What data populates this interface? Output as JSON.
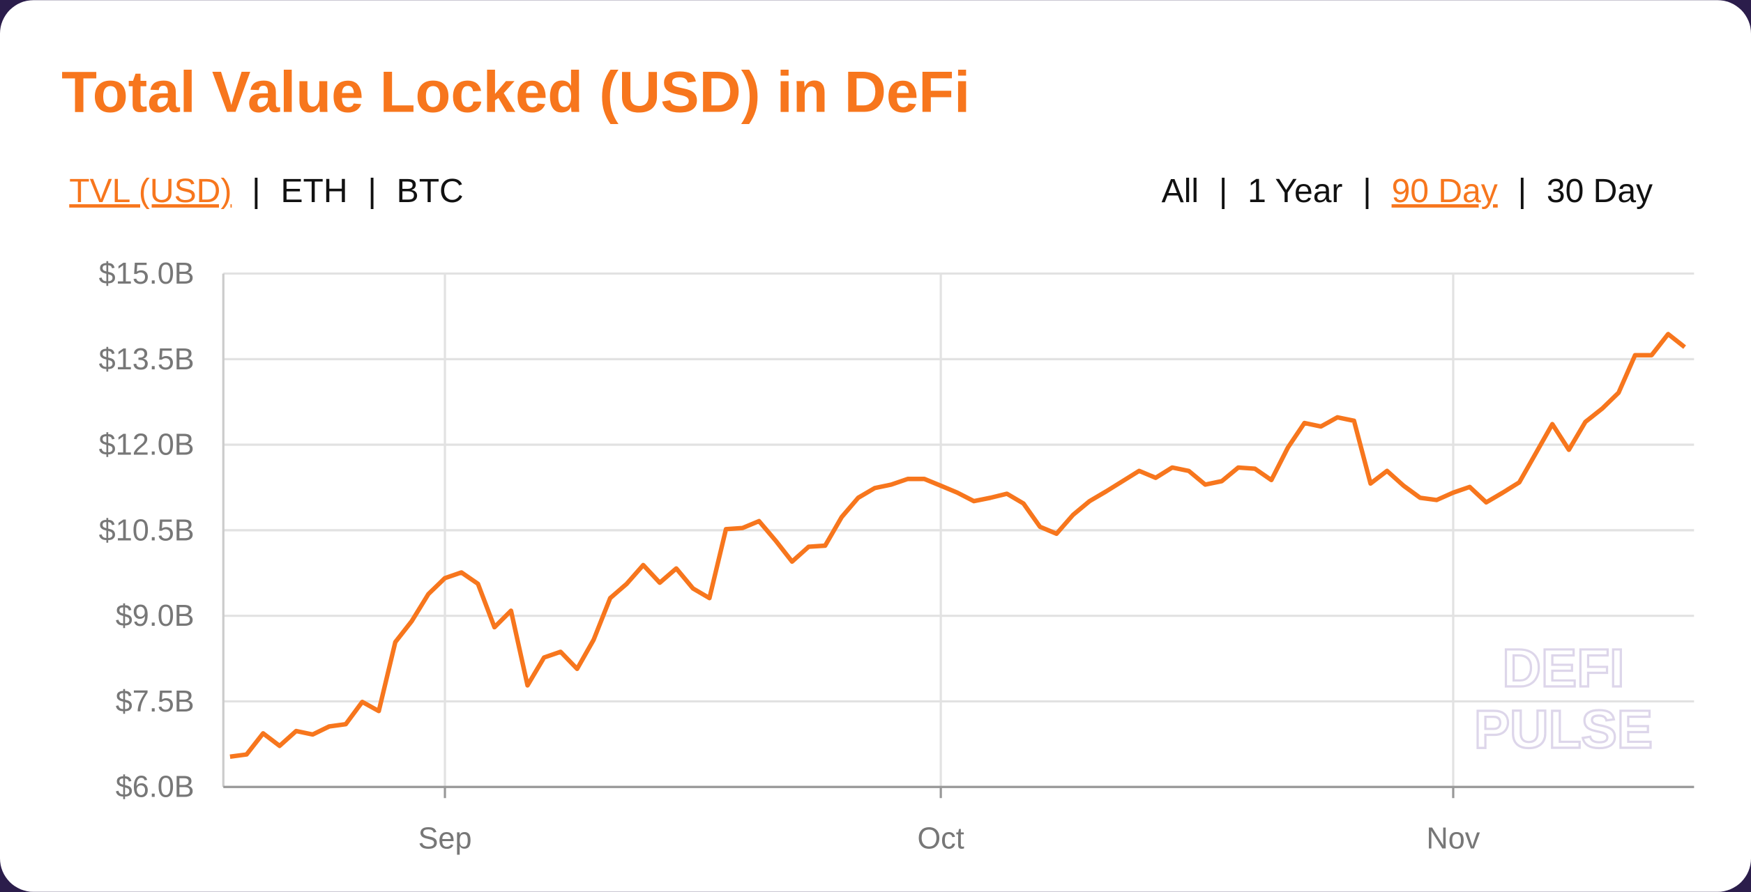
{
  "chart_data": {
    "type": "line",
    "title": "Total Value Locked (USD) in DeFi",
    "categories": [
      null,
      null,
      null,
      null,
      null,
      null,
      null,
      null,
      null,
      null,
      null,
      null,
      null,
      "Sep",
      null,
      null,
      null,
      null,
      null,
      null,
      null,
      null,
      null,
      null,
      null,
      null,
      null,
      null,
      null,
      null,
      null,
      null,
      null,
      null,
      null,
      null,
      null,
      null,
      null,
      null,
      null,
      null,
      null,
      "Oct",
      null,
      null,
      null,
      null,
      null,
      null,
      null,
      null,
      null,
      null,
      null,
      null,
      null,
      null,
      null,
      null,
      null,
      null,
      null,
      null,
      null,
      null,
      null,
      null,
      null,
      null,
      null,
      null,
      null,
      null,
      "Nov",
      null,
      null,
      null,
      null,
      null,
      null,
      null,
      null,
      null,
      null,
      null,
      null,
      null,
      null
    ],
    "series": [
      {
        "name": "TVL (USD)",
        "color": "#f7761d",
        "values": [
          6.53,
          6.57,
          6.94,
          6.72,
          6.98,
          6.92,
          7.06,
          7.1,
          7.49,
          7.33,
          8.54,
          8.91,
          9.38,
          9.66,
          9.76,
          9.56,
          8.8,
          9.09,
          7.78,
          8.27,
          8.37,
          8.07,
          8.58,
          9.31,
          9.56,
          9.89,
          9.58,
          9.83,
          9.48,
          9.31,
          10.52,
          10.54,
          10.66,
          10.32,
          9.95,
          10.21,
          10.23,
          10.73,
          11.07,
          11.24,
          11.3,
          11.4,
          11.4,
          11.28,
          11.16,
          11.01,
          11.07,
          11.14,
          10.97,
          10.56,
          10.44,
          10.77,
          11.01,
          11.18,
          11.36,
          11.54,
          11.42,
          11.6,
          11.54,
          11.3,
          11.36,
          11.6,
          11.58,
          11.38,
          11.95,
          12.38,
          12.32,
          12.48,
          12.42,
          11.32,
          11.54,
          11.28,
          11.07,
          11.03,
          11.16,
          11.26,
          10.99,
          11.16,
          11.34,
          11.85,
          12.36,
          11.91,
          12.4,
          12.63,
          12.91,
          13.57,
          13.57,
          13.94,
          13.71
        ]
      }
    ],
    "ylim": [
      6,
      15
    ],
    "yticks": [
      {
        "value": 6,
        "label": "$6.0B"
      },
      {
        "value": 7.5,
        "label": "$7.5B"
      },
      {
        "value": 9,
        "label": "$9.0B"
      },
      {
        "value": 10.5,
        "label": "$10.5B"
      },
      {
        "value": 12,
        "label": "$12.0B"
      },
      {
        "value": 13.5,
        "label": "$13.5B"
      },
      {
        "value": 15,
        "label": "$15.0B"
      }
    ],
    "grid": true
  },
  "controls": {
    "separator": "|",
    "metrics": [
      "TVL (USD)",
      "ETH",
      "BTC"
    ],
    "active_metric": 0,
    "ranges": [
      "All",
      "1 Year",
      "90 Day",
      "30 Day"
    ],
    "active_range": 2
  },
  "watermark": [
    "DEFI",
    "PULSE"
  ]
}
